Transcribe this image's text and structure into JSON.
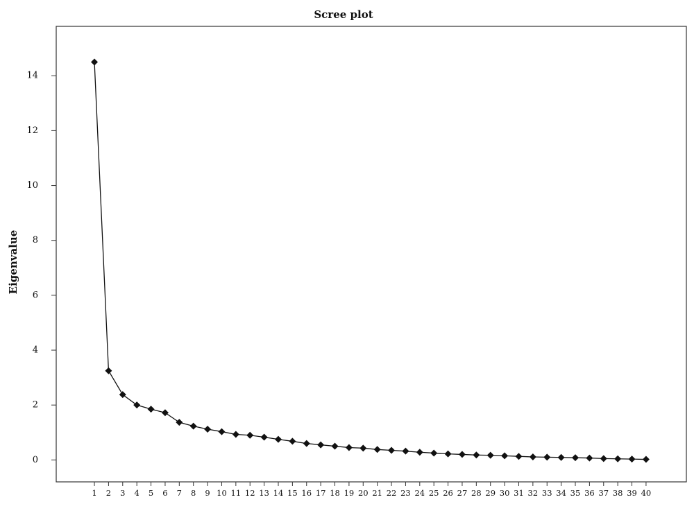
{
  "chart_data": {
    "type": "line",
    "title": "Scree plot",
    "ylabel": "Eigenvalue",
    "x": [
      1,
      2,
      3,
      4,
      5,
      6,
      7,
      8,
      9,
      10,
      11,
      12,
      13,
      14,
      15,
      16,
      17,
      18,
      19,
      20,
      21,
      22,
      23,
      24,
      25,
      26,
      27,
      28,
      29,
      30,
      31,
      32,
      33,
      34,
      35,
      36,
      37,
      38,
      39,
      40
    ],
    "values": [
      14.5,
      3.25,
      2.38,
      2.0,
      1.85,
      1.72,
      1.37,
      1.23,
      1.12,
      1.03,
      0.93,
      0.9,
      0.83,
      0.75,
      0.68,
      0.6,
      0.55,
      0.5,
      0.45,
      0.43,
      0.38,
      0.35,
      0.32,
      0.28,
      0.25,
      0.22,
      0.2,
      0.18,
      0.17,
      0.15,
      0.13,
      0.11,
      0.1,
      0.09,
      0.08,
      0.07,
      0.05,
      0.04,
      0.03,
      0.02
    ],
    "color": "#111111",
    "xlim": [
      -1.7,
      42.85
    ],
    "ylim": [
      -0.8,
      15.8
    ],
    "xticks": [
      1,
      2,
      3,
      4,
      5,
      6,
      7,
      8,
      9,
      10,
      11,
      12,
      13,
      14,
      15,
      16,
      17,
      18,
      19,
      20,
      21,
      22,
      23,
      24,
      25,
      26,
      27,
      28,
      29,
      30,
      31,
      32,
      33,
      34,
      35,
      36,
      37,
      38,
      39,
      40
    ],
    "yticks": [
      0,
      2,
      4,
      6,
      8,
      10,
      12,
      14
    ],
    "grid": false
  }
}
